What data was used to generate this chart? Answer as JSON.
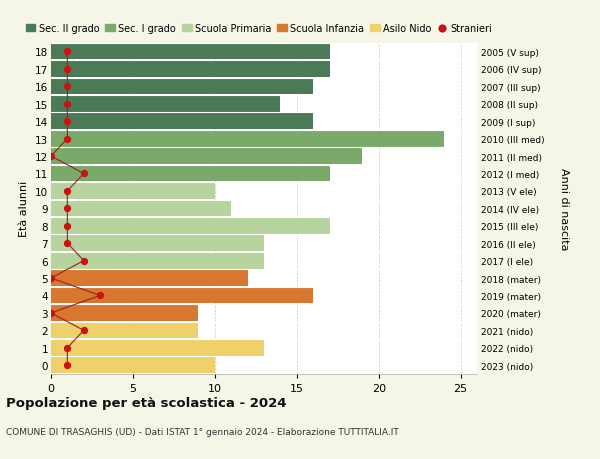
{
  "ages": [
    18,
    17,
    16,
    15,
    14,
    13,
    12,
    11,
    10,
    9,
    8,
    7,
    6,
    5,
    4,
    3,
    2,
    1,
    0
  ],
  "years": [
    "2005 (V sup)",
    "2006 (IV sup)",
    "2007 (III sup)",
    "2008 (II sup)",
    "2009 (I sup)",
    "2010 (III med)",
    "2011 (II med)",
    "2012 (I med)",
    "2013 (V ele)",
    "2014 (IV ele)",
    "2015 (III ele)",
    "2016 (II ele)",
    "2017 (I ele)",
    "2018 (mater)",
    "2019 (mater)",
    "2020 (mater)",
    "2021 (nido)",
    "2022 (nido)",
    "2023 (nido)"
  ],
  "values": [
    17,
    17,
    16,
    14,
    16,
    24,
    19,
    17,
    10,
    11,
    17,
    13,
    13,
    12,
    16,
    9,
    9,
    13,
    10
  ],
  "bar_colors": [
    "#4a7a56",
    "#4a7a56",
    "#4a7a56",
    "#4a7a56",
    "#4a7a56",
    "#7aaa6a",
    "#7aaa6a",
    "#7aaa6a",
    "#b8d49e",
    "#b8d49e",
    "#b8d49e",
    "#b8d49e",
    "#b8d49e",
    "#d87830",
    "#d87830",
    "#d87830",
    "#f0d06a",
    "#f0d06a",
    "#f0d06a"
  ],
  "stranieri": [
    1,
    1,
    1,
    1,
    1,
    1,
    0,
    2,
    1,
    1,
    1,
    1,
    2,
    0,
    3,
    0,
    2,
    1,
    1
  ],
  "legend_labels": [
    "Sec. II grado",
    "Sec. I grado",
    "Scuola Primaria",
    "Scuola Infanzia",
    "Asilo Nido",
    "Stranieri"
  ],
  "legend_colors": [
    "#4a7a56",
    "#7aaa6a",
    "#b8d49e",
    "#d87830",
    "#f0d06a",
    "#cc1111"
  ],
  "title": "Popolazione per età scolastica - 2024",
  "subtitle": "COMUNE DI TRASAGHIS (UD) - Dati ISTAT 1° gennaio 2024 - Elaborazione TUTTITALIA.IT",
  "ylabel_left": "Età alunni",
  "ylabel_right": "Anni di nascita",
  "xlim_max": 26,
  "xticks": [
    0,
    5,
    10,
    15,
    20,
    25
  ],
  "bg_color": "#f5f5e8",
  "plot_bg_color": "#ffffff",
  "grid_color": "#cccccc",
  "stranieri_line_color": "#992020",
  "stranieri_dot_color": "#cc1111",
  "bar_height": 0.92
}
